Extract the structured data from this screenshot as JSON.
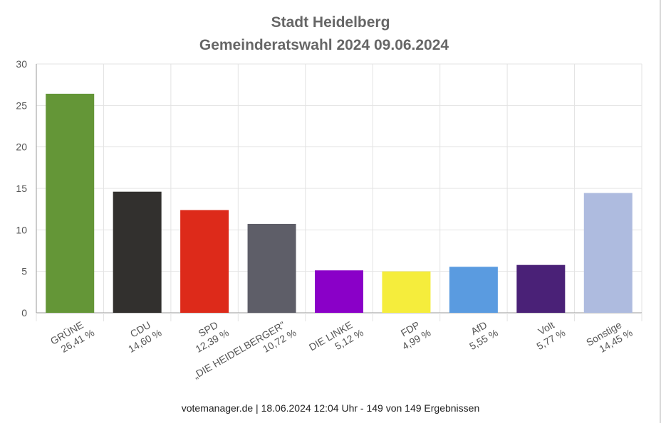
{
  "chart_data": {
    "type": "bar",
    "title": "Stadt Heidelberg",
    "subtitle": "Gemeinderatswahl 2024 09.06.2024",
    "ylim": [
      0,
      30
    ],
    "yticks": [
      0,
      5,
      10,
      15,
      20,
      25,
      30
    ],
    "grid": true,
    "categories": [
      "GRÜNE",
      "CDU",
      "SPD",
      "„DIE HEIDELBERGER\"",
      "DIE LINKE",
      "FDP",
      "AfD",
      "Volt",
      "Sonstige"
    ],
    "value_labels": [
      "26,41 %",
      "14,60 %",
      "12,39 %",
      "10,72 %",
      "5,12 %",
      "4,99 %",
      "5,55 %",
      "5,77 %",
      "14,45 %"
    ],
    "values": [
      26.41,
      14.6,
      12.39,
      10.72,
      5.12,
      4.99,
      5.55,
      5.77,
      14.45
    ],
    "colors": [
      "#649637",
      "#32302e",
      "#dd2a1a",
      "#5e5e68",
      "#8a00c8",
      "#f5ed3c",
      "#5a9be0",
      "#4a2177",
      "#aebbdf"
    ]
  },
  "footer": "votemanager.de | 18.06.2024 12:04 Uhr - 149 von 149 Ergebnissen"
}
